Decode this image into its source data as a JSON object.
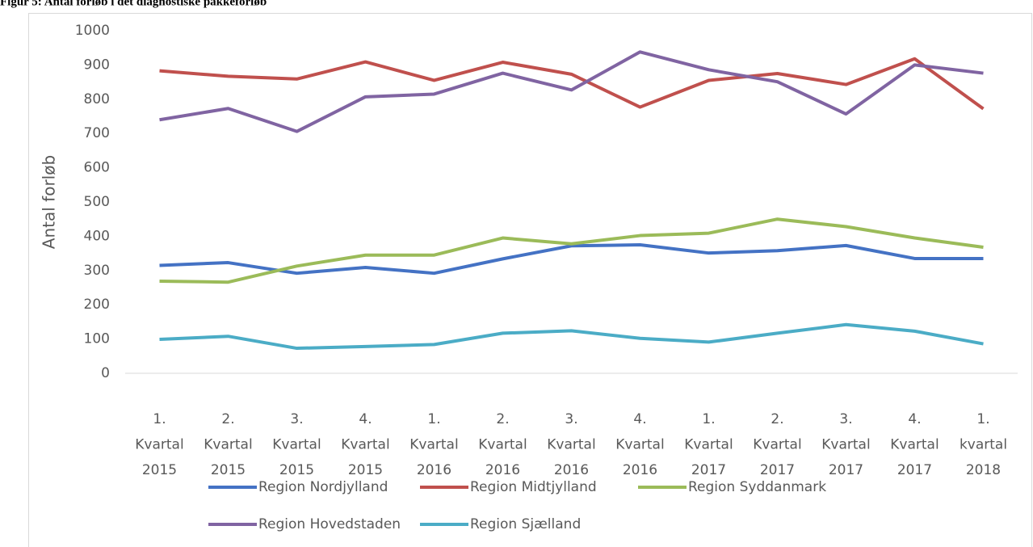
{
  "chart_data": {
    "type": "line",
    "title": "Figur 5: Antal forløb i det diagnostiske pakkeforløb",
    "ylabel": "Antal forløb",
    "categories": [
      [
        "1.",
        "Kvartal",
        "2015"
      ],
      [
        "2.",
        "Kvartal",
        "2015"
      ],
      [
        "3.",
        "Kvartal",
        "2015"
      ],
      [
        "4.",
        "Kvartal",
        "2015"
      ],
      [
        "1.",
        "Kvartal",
        "2016"
      ],
      [
        "2.",
        "Kvartal",
        "2016"
      ],
      [
        "3.",
        "Kvartal",
        "2016"
      ],
      [
        "4.",
        "Kvartal",
        "2016"
      ],
      [
        "1.",
        "Kvartal",
        "2017"
      ],
      [
        "2.",
        "Kvartal",
        "2017"
      ],
      [
        "3.",
        "Kvartal",
        "2017"
      ],
      [
        "4.",
        "Kvartal",
        "2017"
      ],
      [
        "1.",
        "kvartal",
        "2018"
      ]
    ],
    "series": [
      {
        "name": "Region Nordjylland",
        "color": "#4472c4",
        "values": [
          315,
          323,
          292,
          309,
          292,
          334,
          372,
          375,
          351,
          358,
          373,
          335,
          335
        ]
      },
      {
        "name": "Region Midtjylland",
        "color": "#c0504d",
        "values": [
          883,
          867,
          859,
          909,
          855,
          908,
          873,
          777,
          855,
          875,
          843,
          918,
          772
        ]
      },
      {
        "name": "Region Syddanmark",
        "color": "#9bbb59",
        "values": [
          269,
          266,
          313,
          345,
          345,
          395,
          378,
          402,
          409,
          450,
          428,
          395,
          368
        ]
      },
      {
        "name": "Region Hovedstaden",
        "color": "#8064a2",
        "values": [
          740,
          773,
          706,
          807,
          815,
          876,
          827,
          938,
          886,
          851,
          757,
          900,
          876
        ]
      },
      {
        "name": "Region Sjælland",
        "color": "#4bacc6",
        "values": [
          99,
          108,
          73,
          78,
          84,
          117,
          124,
          102,
          91,
          117,
          142,
          123,
          86
        ]
      }
    ],
    "ylim": [
      0,
      1000
    ],
    "yticks": [
      0,
      100,
      200,
      300,
      400,
      500,
      600,
      700,
      800,
      900,
      1000
    ],
    "grid": false
  }
}
